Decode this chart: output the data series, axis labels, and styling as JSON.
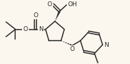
{
  "background_color": "#fbf6ee",
  "bond_color": "#2a2a2a",
  "text_color": "#2a2a2a",
  "bond_width": 1.1,
  "font_size": 6.5,
  "figsize": [
    1.89,
    0.93
  ],
  "dpi": 100,
  "xlim": [
    0.0,
    9.5
  ],
  "ylim": [
    0.0,
    4.7
  ]
}
